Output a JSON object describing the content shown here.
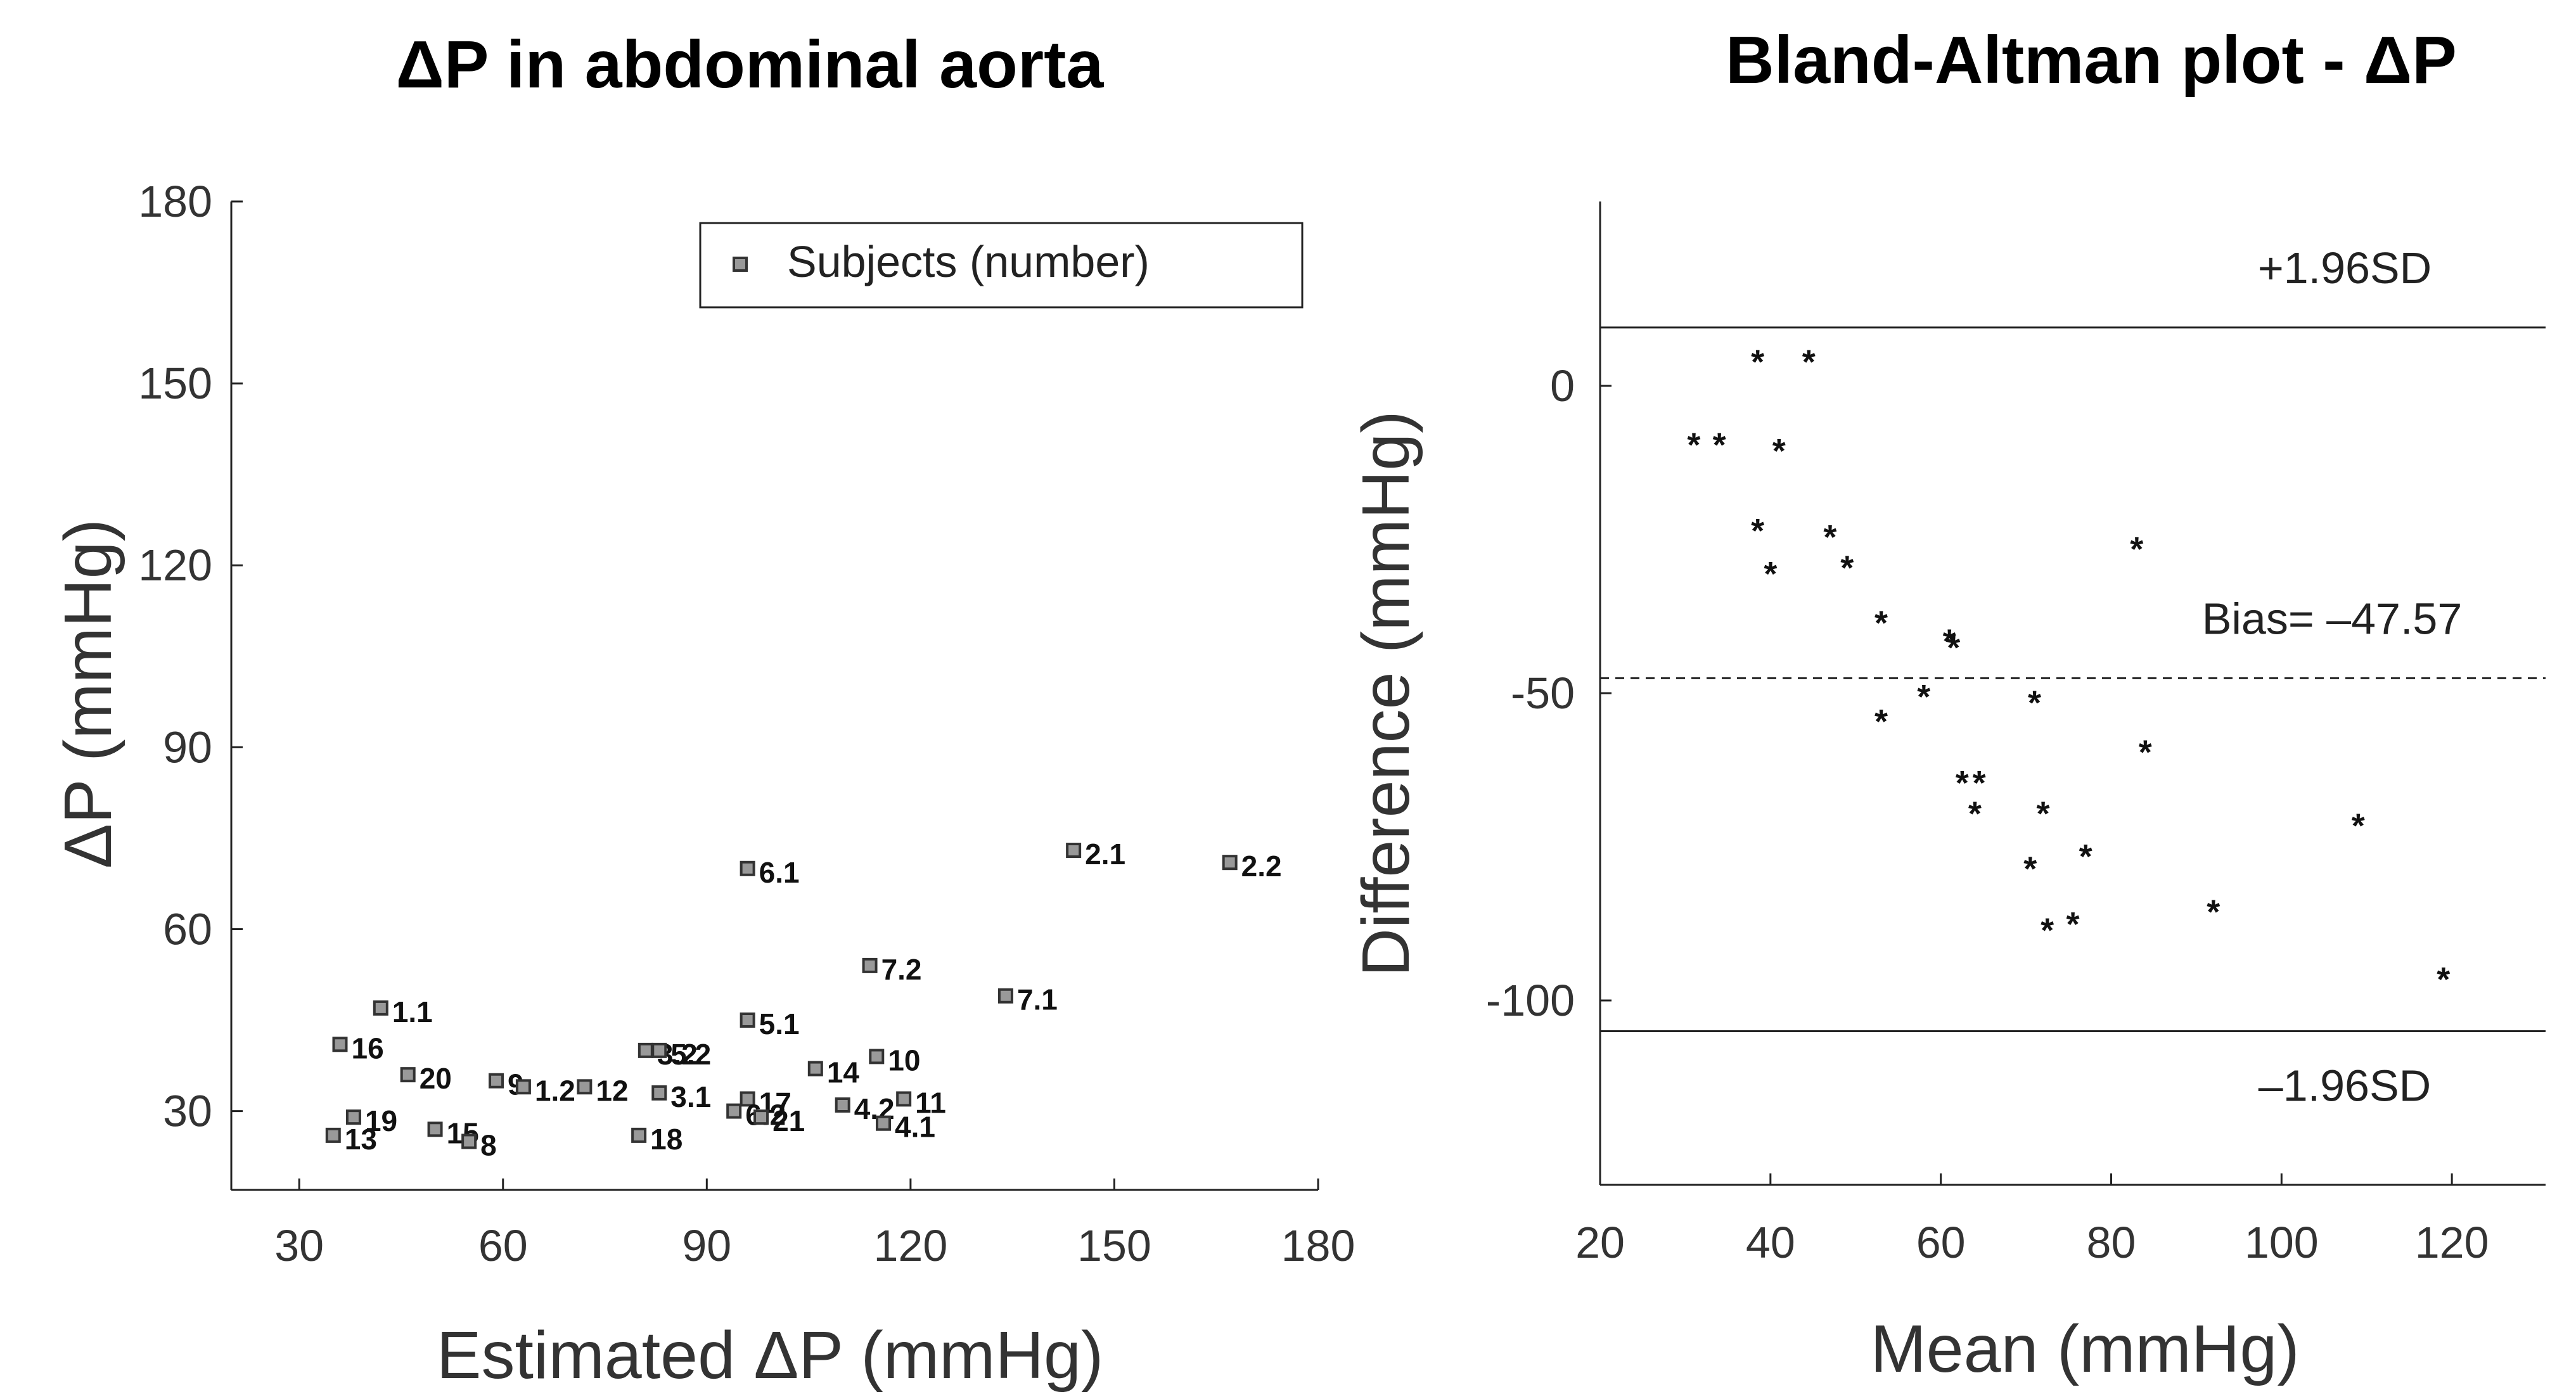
{
  "chart_data": [
    {
      "type": "scatter",
      "title": "ΔP  in abdominal aorta",
      "xlabel": "Estimated ΔP (mmHg)",
      "ylabel": "ΔP (mmHg)",
      "xlim": [
        20,
        180
      ],
      "ylim": [
        17,
        180
      ],
      "xticks": [
        30,
        60,
        90,
        120,
        150,
        180
      ],
      "yticks": [
        30,
        60,
        90,
        120,
        150,
        180
      ],
      "grid": false,
      "legend": {
        "position": "top-right",
        "entries": [
          "Subjects (number)"
        ]
      },
      "series": [
        {
          "name": "Subjects (number)",
          "marker": "square",
          "points": [
            {
              "label": "1.1",
              "x": 42,
              "y": 47
            },
            {
              "label": "16",
              "x": 36,
              "y": 41
            },
            {
              "label": "20",
              "x": 46,
              "y": 36
            },
            {
              "label": "13",
              "x": 35,
              "y": 26
            },
            {
              "label": "19",
              "x": 38,
              "y": 29
            },
            {
              "label": "15",
              "x": 50,
              "y": 27
            },
            {
              "label": "8",
              "x": 55,
              "y": 25
            },
            {
              "label": "9",
              "x": 59,
              "y": 35
            },
            {
              "label": "1.2",
              "x": 63,
              "y": 34
            },
            {
              "label": "12",
              "x": 72,
              "y": 34
            },
            {
              "label": "3.2",
              "x": 81,
              "y": 40
            },
            {
              "label": "5.2",
              "x": 83,
              "y": 40
            },
            {
              "label": "3.1",
              "x": 83,
              "y": 33
            },
            {
              "label": "18",
              "x": 80,
              "y": 26
            },
            {
              "label": "17",
              "x": 96,
              "y": 32
            },
            {
              "label": "6.2",
              "x": 94,
              "y": 30
            },
            {
              "label": "21",
              "x": 98,
              "y": 29
            },
            {
              "label": "5.1",
              "x": 96,
              "y": 45
            },
            {
              "label": "6.1",
              "x": 96,
              "y": 70
            },
            {
              "label": "14",
              "x": 106,
              "y": 37
            },
            {
              "label": "10",
              "x": 115,
              "y": 39
            },
            {
              "label": "4.2",
              "x": 110,
              "y": 31
            },
            {
              "label": "4.1",
              "x": 116,
              "y": 28
            },
            {
              "label": "11",
              "x": 119,
              "y": 32
            },
            {
              "label": "7.2",
              "x": 114,
              "y": 54
            },
            {
              "label": "7.1",
              "x": 134,
              "y": 49
            },
            {
              "label": "2.1",
              "x": 144,
              "y": 73
            },
            {
              "label": "2.2",
              "x": 167,
              "y": 71
            }
          ]
        }
      ]
    },
    {
      "type": "scatter",
      "title": "Bland-Altman plot - ΔP",
      "xlabel": "Mean (mmHg)",
      "ylabel": "Difference (mmHg)",
      "xlim": [
        20,
        131
      ],
      "ylim": [
        -130,
        30
      ],
      "xticks": [
        20,
        40,
        60,
        80,
        100,
        120
      ],
      "yticks": [
        0,
        -50,
        -100
      ],
      "ytick_labels": [
        "0",
        "-50",
        "-100"
      ],
      "grid": false,
      "reference_lines": [
        {
          "label": "+1.96SD",
          "y": 9.5,
          "style": "solid"
        },
        {
          "label": "Bias= –47.57",
          "y": -47.57,
          "style": "dashed"
        },
        {
          "label": "–1.96SD",
          "y": -105,
          "style": "solid"
        }
      ],
      "series": [
        {
          "name": "Subjects",
          "marker": "asterisk",
          "points": [
            {
              "x": 38.5,
              "y": 4.5
            },
            {
              "x": 44.5,
              "y": 4.5
            },
            {
              "x": 31,
              "y": -9
            },
            {
              "x": 34,
              "y": -9
            },
            {
              "x": 41,
              "y": -10
            },
            {
              "x": 38.5,
              "y": -23
            },
            {
              "x": 47,
              "y": -24
            },
            {
              "x": 40,
              "y": -30
            },
            {
              "x": 49,
              "y": -29
            },
            {
              "x": 83,
              "y": -26
            },
            {
              "x": 53,
              "y": -38
            },
            {
              "x": 61,
              "y": -41
            },
            {
              "x": 61.5,
              "y": -42
            },
            {
              "x": 53,
              "y": -54
            },
            {
              "x": 58,
              "y": -50
            },
            {
              "x": 71,
              "y": -51
            },
            {
              "x": 84,
              "y": -59
            },
            {
              "x": 62.5,
              "y": -64
            },
            {
              "x": 64.5,
              "y": -64
            },
            {
              "x": 64,
              "y": -69
            },
            {
              "x": 72,
              "y": -69
            },
            {
              "x": 109,
              "y": -71
            },
            {
              "x": 77,
              "y": -76
            },
            {
              "x": 70.5,
              "y": -78
            },
            {
              "x": 72.5,
              "y": -88
            },
            {
              "x": 75.5,
              "y": -87
            },
            {
              "x": 92,
              "y": -85
            },
            {
              "x": 119,
              "y": -96
            }
          ]
        }
      ]
    }
  ]
}
